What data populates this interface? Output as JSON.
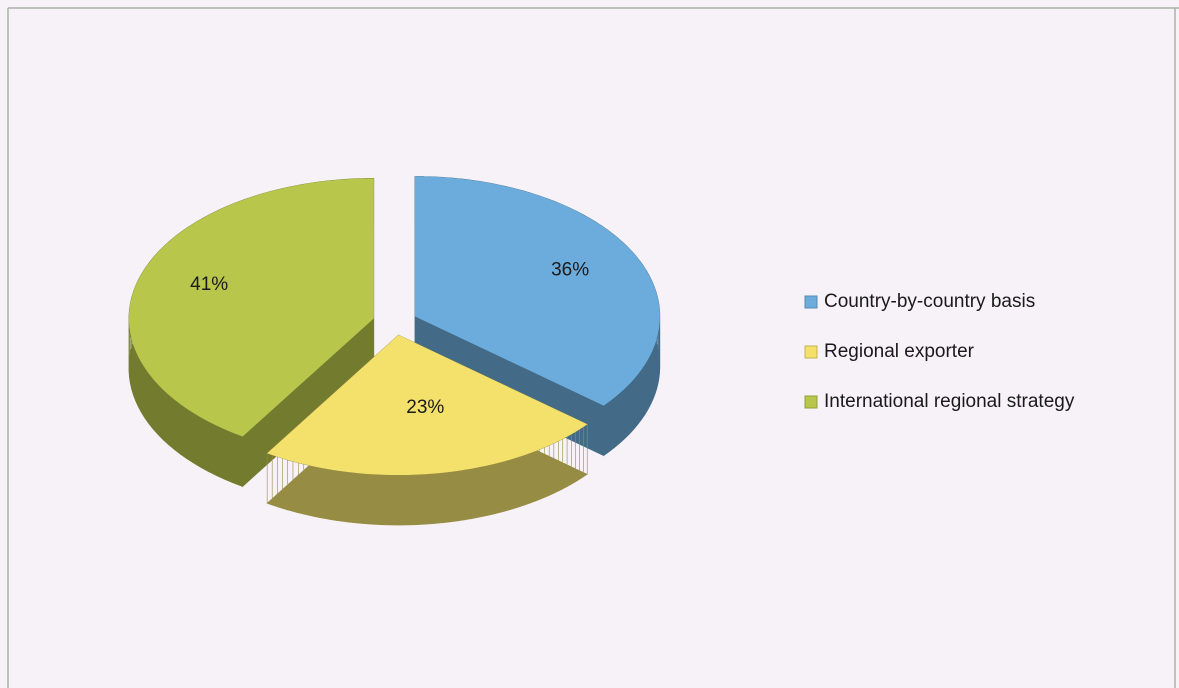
{
  "chart_data": {
    "type": "pie3d",
    "categories": [
      "Country-by-country basis",
      "Regional exporter",
      "International regional strategy"
    ],
    "values": [
      36,
      23,
      41
    ],
    "value_labels": [
      "36%",
      "23%",
      "41%"
    ],
    "colors": [
      "#6cacdc",
      "#f4e16c",
      "#b9c64c"
    ],
    "legend": "right"
  }
}
